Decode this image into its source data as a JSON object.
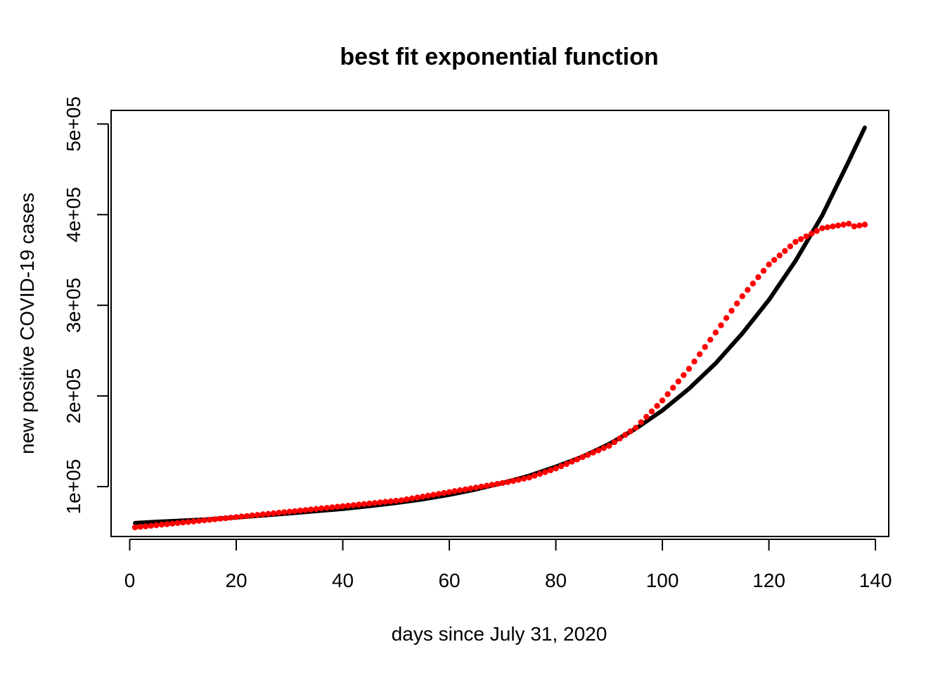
{
  "chart_data": {
    "type": "scatter",
    "title": "best fit exponential function",
    "xlabel": "days since July 31, 2020",
    "ylabel": "new positive COVID-19 cases",
    "xlim": [
      -3.5,
      142.5
    ],
    "ylim": [
      45000,
      515000
    ],
    "x_ticks": [
      0,
      20,
      40,
      60,
      80,
      100,
      120,
      140
    ],
    "x_tick_labels": [
      "0",
      "20",
      "40",
      "60",
      "80",
      "100",
      "120",
      "140"
    ],
    "y_ticks": [
      100000,
      200000,
      300000,
      400000,
      500000
    ],
    "y_tick_labels": [
      "1e+05",
      "2e+05",
      "3e+05",
      "4e+05",
      "5e+05"
    ],
    "grid": false,
    "legend": "none",
    "series": [
      {
        "role": "observed",
        "mark": "point",
        "color": "#ff0000",
        "x": [
          1,
          2,
          3,
          4,
          5,
          6,
          7,
          8,
          9,
          10,
          11,
          12,
          13,
          14,
          15,
          16,
          17,
          18,
          19,
          20,
          21,
          22,
          23,
          24,
          25,
          26,
          27,
          28,
          29,
          30,
          31,
          32,
          33,
          34,
          35,
          36,
          37,
          38,
          39,
          40,
          41,
          42,
          43,
          44,
          45,
          46,
          47,
          48,
          49,
          50,
          51,
          52,
          53,
          54,
          55,
          56,
          57,
          58,
          59,
          60,
          61,
          62,
          63,
          64,
          65,
          66,
          67,
          68,
          69,
          70,
          71,
          72,
          73,
          74,
          75,
          76,
          77,
          78,
          79,
          80,
          81,
          82,
          83,
          84,
          85,
          86,
          87,
          88,
          89,
          90,
          91,
          92,
          93,
          94,
          95,
          96,
          97,
          98,
          99,
          100,
          101,
          102,
          103,
          104,
          105,
          106,
          107,
          108,
          109,
          110,
          111,
          112,
          113,
          114,
          115,
          116,
          117,
          118,
          119,
          120,
          121,
          122,
          123,
          124,
          125,
          126,
          127,
          128,
          129,
          130,
          131,
          132,
          133,
          134,
          135,
          136,
          137,
          138
        ],
        "y": [
          55000,
          55600,
          56200,
          56800,
          57400,
          58000,
          58600,
          59200,
          59800,
          60400,
          61000,
          61600,
          62200,
          62800,
          63400,
          64000,
          64600,
          65200,
          65800,
          66400,
          67000,
          67600,
          68200,
          68800,
          69400,
          70000,
          70600,
          71200,
          71800,
          72400,
          73000,
          73600,
          74200,
          74800,
          75400,
          76000,
          76600,
          77200,
          77800,
          78400,
          79000,
          79600,
          80200,
          80800,
          81400,
          82000,
          82600,
          83200,
          83800,
          84400,
          85000,
          86000,
          87000,
          88000,
          89000,
          90000,
          91000,
          92000,
          93000,
          94000,
          95000,
          96000,
          97000,
          98000,
          99000,
          100000,
          101000,
          102000,
          103000,
          104000,
          105000,
          106250,
          107500,
          108750,
          110000,
          112000,
          114000,
          116000,
          118000,
          120000,
          122500,
          125000,
          127500,
          130000,
          132500,
          135000,
          137500,
          140000,
          142500,
          145000,
          149000,
          153000,
          157000,
          161000,
          165000,
          171000,
          177000,
          183000,
          189000,
          195000,
          202000,
          209000,
          216000,
          223000,
          230000,
          238000,
          246000,
          254000,
          262000,
          270000,
          278000,
          286000,
          294000,
          302000,
          310000,
          317000,
          324000,
          331000,
          338000,
          345000,
          350000,
          355000,
          360000,
          365000,
          370000,
          373000,
          376000,
          379000,
          382000,
          385000,
          386000,
          387000,
          388000,
          389000,
          390000,
          387000,
          388000,
          389000
        ]
      },
      {
        "role": "fit",
        "mark": "line",
        "color": "#000000",
        "x": [
          1,
          5,
          10,
          15,
          20,
          25,
          30,
          35,
          40,
          45,
          50,
          55,
          60,
          65,
          70,
          75,
          80,
          85,
          90,
          95,
          100,
          105,
          110,
          115,
          120,
          125,
          130,
          135,
          138
        ],
        "y": [
          59800,
          61200,
          62500,
          64000,
          66000,
          68200,
          70500,
          73000,
          75500,
          78500,
          82000,
          86000,
          91000,
          97000,
          104000,
          112000,
          122000,
          133000,
          147000,
          164000,
          184000,
          208000,
          236000,
          269000,
          306000,
          349000,
          399000,
          459000,
          496000
        ]
      }
    ]
  }
}
